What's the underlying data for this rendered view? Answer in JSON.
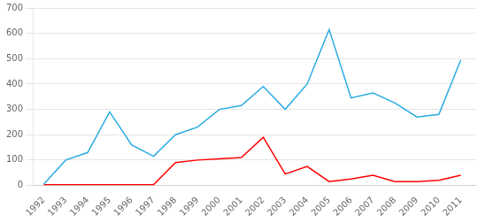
{
  "chart_data": {
    "type": "line",
    "x": [
      1992,
      1993,
      1994,
      1995,
      1996,
      1997,
      1998,
      1999,
      2000,
      2001,
      2002,
      2003,
      2004,
      2005,
      2006,
      2007,
      2008,
      2009,
      2010,
      2011
    ],
    "series": [
      {
        "color": "#29ABE2",
        "values": [
          5,
          100,
          130,
          290,
          160,
          115,
          200,
          230,
          300,
          315,
          390,
          300,
          400,
          615,
          345,
          365,
          325,
          270,
          280,
          495
        ]
      },
      {
        "color": "#FF0000",
        "values": [
          3,
          3,
          3,
          3,
          3,
          3,
          90,
          100,
          105,
          110,
          190,
          45,
          75,
          15,
          25,
          40,
          15,
          15,
          20,
          40
        ]
      }
    ],
    "xlim": [
      1991.5,
      2011.7
    ],
    "xticks": [
      1992,
      1993,
      1994,
      1995,
      1996,
      1997,
      1998,
      1999,
      2000,
      2001,
      2002,
      2003,
      2004,
      2005,
      2006,
      2007,
      2008,
      2009,
      2010,
      2011
    ],
    "ylim": [
      0,
      700
    ],
    "yticks": [
      0,
      100,
      200,
      300,
      400,
      500,
      600,
      700
    ],
    "grid": "y"
  }
}
